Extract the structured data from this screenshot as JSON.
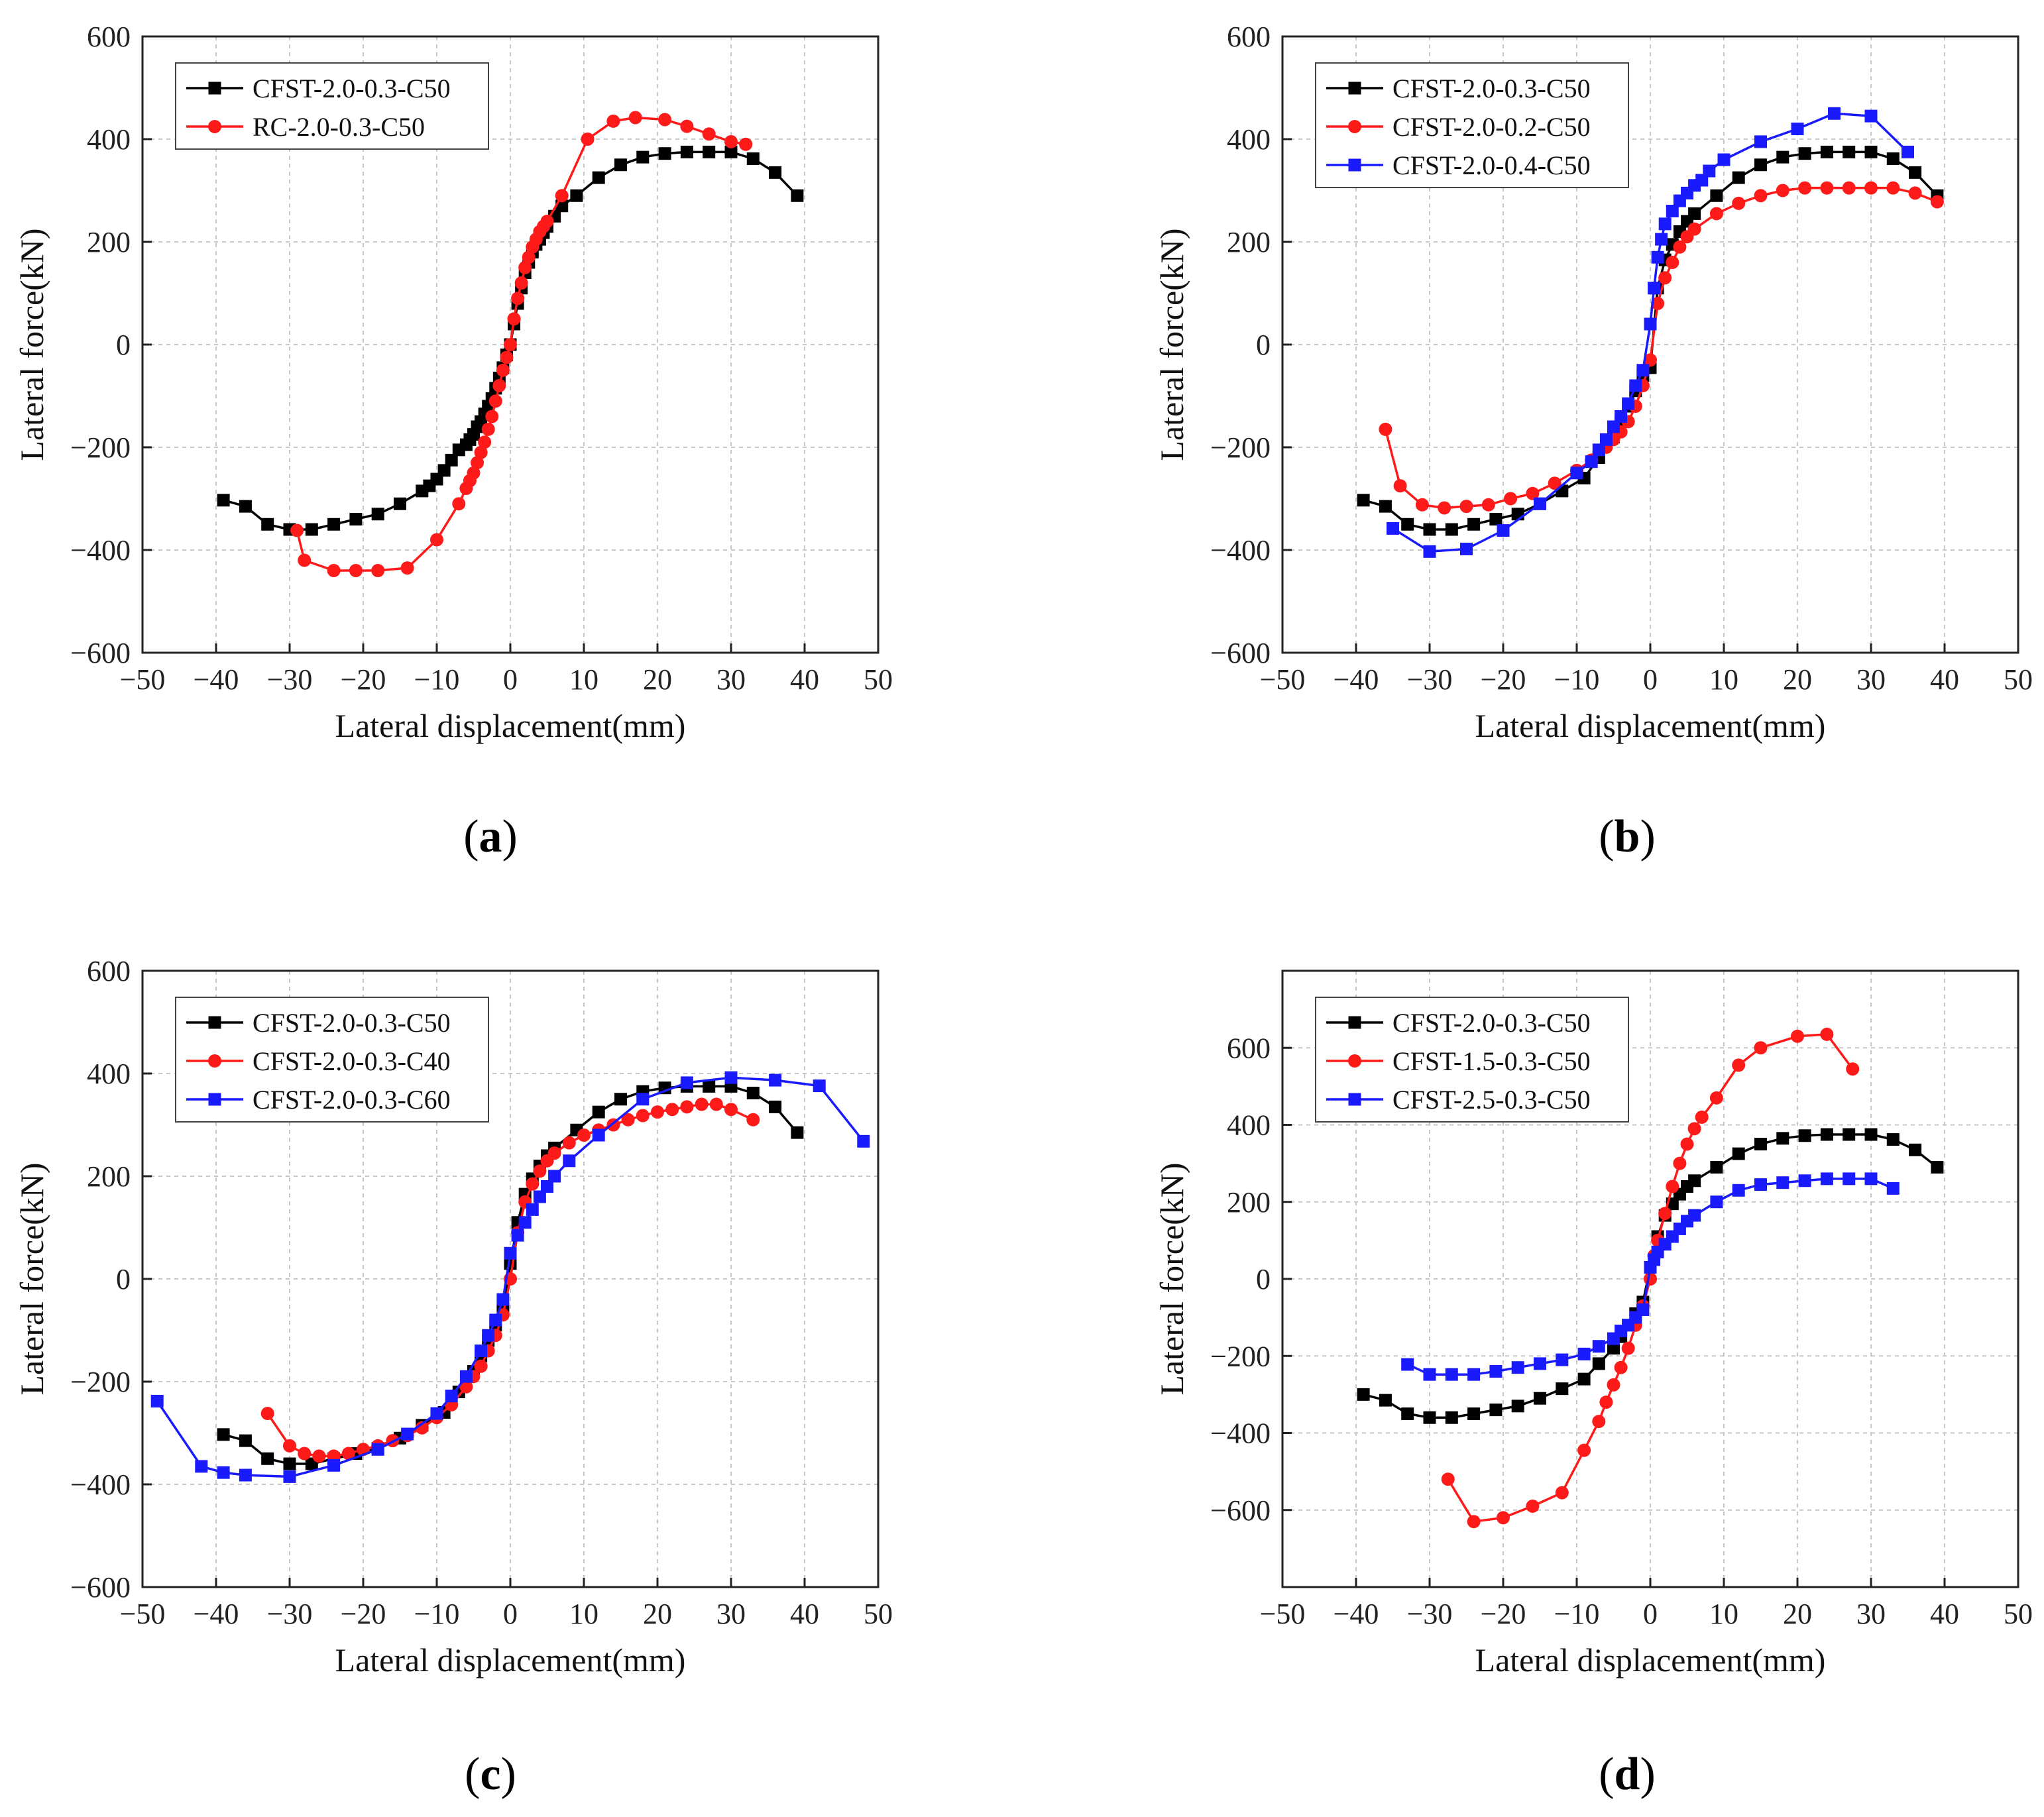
{
  "figure": {
    "panel_captions": [
      "a",
      "b",
      "c",
      "d"
    ]
  },
  "colors": {
    "black": "#000000",
    "red": "#ff1a1a",
    "blue": "#1a1aff",
    "grid": "#c8c8c8"
  },
  "chart_data": [
    {
      "id": "a",
      "type": "line",
      "xlabel": "Lateral displacement(mm)",
      "ylabel": "Lateral force(kN)",
      "xlim": [
        -50,
        50
      ],
      "ylim": [
        -600,
        600
      ],
      "xticks": [
        -50,
        -40,
        -30,
        -20,
        -10,
        0,
        10,
        20,
        30,
        40,
        50
      ],
      "yticks": [
        -600,
        -400,
        -200,
        0,
        200,
        400,
        600
      ],
      "grid": true,
      "legend_position": "top-left",
      "series": [
        {
          "name": "CFST-2.0-0.3-C50",
          "color": "black",
          "marker": "square",
          "x": [
            -39,
            -36,
            -33,
            -30,
            -27,
            -24,
            -21,
            -18,
            -15,
            -12,
            -11,
            -10,
            -9,
            -8,
            -7,
            -6,
            -5.5,
            -5,
            -4.5,
            -4,
            -3.5,
            -3,
            -2.5,
            -2,
            -1.5,
            -1,
            -0.5,
            0,
            0.5,
            1,
            1.5,
            2,
            2.5,
            3,
            3.5,
            4,
            4.5,
            5,
            6,
            7,
            9,
            12,
            15,
            18,
            21,
            24,
            27,
            30,
            33,
            36,
            39
          ],
          "y": [
            -303,
            -315,
            -350,
            -360,
            -360,
            -350,
            -340,
            -330,
            -310,
            -285,
            -275,
            -262,
            -245,
            -225,
            -205,
            -195,
            -185,
            -175,
            -160,
            -150,
            -135,
            -120,
            -105,
            -85,
            -65,
            -45,
            -20,
            0,
            40,
            80,
            110,
            140,
            160,
            180,
            195,
            205,
            218,
            230,
            250,
            270,
            290,
            325,
            350,
            365,
            372,
            375,
            375,
            375,
            362,
            335,
            290
          ]
        },
        {
          "name": "RC-2.0-0.3-C50",
          "color": "red",
          "marker": "circle",
          "x": [
            -29,
            -28,
            -24,
            -21,
            -18,
            -14,
            -10,
            -7,
            -6,
            -5.5,
            -5,
            -4.5,
            -4,
            -3.5,
            -3,
            -2.5,
            -2,
            -1.5,
            -1,
            -0.5,
            0,
            0.5,
            1,
            1.5,
            2,
            2.5,
            3,
            3.5,
            4,
            4.5,
            5,
            7,
            10.5,
            14,
            17,
            21,
            24,
            27,
            30,
            32
          ],
          "y": [
            -362,
            -420,
            -440,
            -440,
            -440,
            -435,
            -380,
            -310,
            -280,
            -265,
            -250,
            -230,
            -210,
            -190,
            -165,
            -140,
            -110,
            -80,
            -50,
            -25,
            0,
            50,
            90,
            120,
            150,
            170,
            190,
            205,
            220,
            230,
            240,
            290,
            400,
            435,
            442,
            438,
            425,
            410,
            395,
            390
          ]
        }
      ]
    },
    {
      "id": "b",
      "type": "line",
      "xlabel": "Lateral displacement(mm)",
      "ylabel": "Lateral force(kN)",
      "xlim": [
        -50,
        50
      ],
      "ylim": [
        -600,
        600
      ],
      "xticks": [
        -50,
        -40,
        -30,
        -20,
        -10,
        0,
        10,
        20,
        30,
        40,
        50
      ],
      "yticks": [
        -600,
        -400,
        -200,
        0,
        200,
        400,
        600
      ],
      "grid": true,
      "legend_position": "top-left",
      "series": [
        {
          "name": "CFST-2.0-0.3-C50",
          "color": "black",
          "marker": "square",
          "x": [
            -39,
            -36,
            -33,
            -30,
            -27,
            -24,
            -21,
            -18,
            -15,
            -12,
            -9,
            -7,
            -5,
            -4,
            -3,
            -2,
            -1,
            0,
            1,
            2,
            3,
            4,
            5,
            6,
            9,
            12,
            15,
            18,
            21,
            24,
            27,
            30,
            33,
            36,
            39
          ],
          "y": [
            -303,
            -315,
            -350,
            -360,
            -360,
            -350,
            -340,
            -330,
            -310,
            -285,
            -260,
            -220,
            -180,
            -150,
            -120,
            -90,
            -60,
            -45,
            110,
            165,
            195,
            220,
            240,
            255,
            290,
            325,
            350,
            365,
            372,
            375,
            375,
            375,
            362,
            335,
            290
          ]
        },
        {
          "name": "CFST-2.0-0.2-C50",
          "color": "red",
          "marker": "circle",
          "x": [
            -36,
            -34,
            -31,
            -28,
            -25,
            -22,
            -19,
            -16,
            -13,
            -10,
            -8,
            -6,
            -5,
            -4,
            -3,
            -2,
            -1,
            0,
            1,
            2,
            3,
            4,
            5,
            6,
            9,
            12,
            15,
            18,
            21,
            24,
            27,
            30,
            33,
            36,
            39
          ],
          "y": [
            -165,
            -275,
            -312,
            -318,
            -315,
            -312,
            -300,
            -290,
            -270,
            -245,
            -225,
            -200,
            -185,
            -170,
            -150,
            -120,
            -80,
            -30,
            80,
            130,
            160,
            190,
            210,
            225,
            255,
            275,
            290,
            300,
            305,
            305,
            305,
            305,
            305,
            295,
            278
          ]
        },
        {
          "name": "CFST-2.0-0.4-C50",
          "color": "blue",
          "marker": "square",
          "x": [
            -35,
            -30,
            -25,
            -20,
            -15,
            -10,
            -8,
            -7,
            -6,
            -5,
            -4,
            -3,
            -2,
            -1,
            0,
            0.5,
            1,
            1.5,
            2,
            3,
            4,
            5,
            6,
            7,
            8,
            10,
            15,
            20,
            25,
            30,
            35
          ],
          "y": [
            -358,
            -403,
            -398,
            -362,
            -310,
            -250,
            -228,
            -205,
            -185,
            -160,
            -140,
            -115,
            -80,
            -50,
            40,
            110,
            170,
            205,
            235,
            260,
            280,
            295,
            310,
            320,
            338,
            360,
            395,
            420,
            450,
            445,
            375
          ]
        }
      ]
    },
    {
      "id": "c",
      "type": "line",
      "xlabel": "Lateral displacement(mm)",
      "ylabel": "Lateral force(kN)",
      "xlim": [
        -50,
        50
      ],
      "ylim": [
        -600,
        600
      ],
      "xticks": [
        -50,
        -40,
        -30,
        -20,
        -10,
        0,
        10,
        20,
        30,
        40,
        50
      ],
      "yticks": [
        -600,
        -400,
        -200,
        0,
        200,
        400,
        600
      ],
      "grid": true,
      "legend_position": "top-left",
      "series": [
        {
          "name": "CFST-2.0-0.3-C50",
          "color": "black",
          "marker": "square",
          "x": [
            -39,
            -36,
            -33,
            -30,
            -27,
            -24,
            -21,
            -18,
            -15,
            -12,
            -9,
            -7,
            -5,
            -4,
            -3,
            -2,
            -1,
            0,
            1,
            2,
            3,
            4,
            5,
            6,
            9,
            12,
            15,
            18,
            21,
            24,
            27,
            30,
            33,
            36,
            39
          ],
          "y": [
            -303,
            -315,
            -350,
            -360,
            -360,
            -350,
            -340,
            -330,
            -310,
            -285,
            -260,
            -220,
            -180,
            -150,
            -120,
            -90,
            -60,
            30,
            110,
            165,
            195,
            220,
            240,
            255,
            290,
            325,
            350,
            365,
            372,
            375,
            375,
            375,
            362,
            335,
            285
          ]
        },
        {
          "name": "CFST-2.0-0.3-C40",
          "color": "red",
          "marker": "circle",
          "x": [
            -33,
            -30,
            -28,
            -26,
            -24,
            -22,
            -20,
            -18,
            -16,
            -14,
            -12,
            -10,
            -8,
            -6,
            -5,
            -4,
            -3,
            -2,
            -1,
            0,
            1,
            2,
            3,
            4,
            5,
            6,
            8,
            10,
            12,
            14,
            16,
            18,
            20,
            22,
            24,
            26,
            28,
            30,
            33
          ],
          "y": [
            -262,
            -325,
            -340,
            -345,
            -345,
            -340,
            -332,
            -325,
            -315,
            -305,
            -290,
            -270,
            -245,
            -210,
            -190,
            -170,
            -140,
            -110,
            -70,
            0,
            90,
            150,
            185,
            210,
            230,
            245,
            265,
            280,
            290,
            300,
            310,
            318,
            325,
            330,
            335,
            340,
            340,
            330,
            310
          ]
        },
        {
          "name": "CFST-2.0-0.3-C60",
          "color": "blue",
          "marker": "square",
          "x": [
            -48,
            -42,
            -39,
            -36,
            -30,
            -24,
            -18,
            -14,
            -10,
            -8,
            -6,
            -4,
            -3,
            -2,
            -1,
            0,
            1,
            2,
            3,
            4,
            5,
            6,
            8,
            12,
            18,
            24,
            30,
            36,
            42,
            48
          ],
          "y": [
            -238,
            -365,
            -377,
            -382,
            -385,
            -363,
            -332,
            -302,
            -262,
            -228,
            -190,
            -140,
            -110,
            -80,
            -40,
            50,
            85,
            110,
            135,
            160,
            180,
            200,
            230,
            280,
            350,
            382,
            392,
            387,
            376,
            268
          ]
        }
      ]
    },
    {
      "id": "d",
      "type": "line",
      "xlabel": "Lateral displacement(mm)",
      "ylabel": "Lateral force(kN)",
      "xlim": [
        -50,
        50
      ],
      "ylim": [
        -800,
        800
      ],
      "xticks": [
        -50,
        -40,
        -30,
        -20,
        -10,
        0,
        10,
        20,
        30,
        40,
        50
      ],
      "yticks": [
        -600,
        -400,
        -200,
        0,
        200,
        400,
        600
      ],
      "grid": true,
      "legend_position": "top-left",
      "series": [
        {
          "name": "CFST-2.0-0.3-C50",
          "color": "black",
          "marker": "square",
          "x": [
            -39,
            -36,
            -33,
            -30,
            -27,
            -24,
            -21,
            -18,
            -15,
            -12,
            -9,
            -7,
            -5,
            -4,
            -3,
            -2,
            -1,
            0,
            1,
            2,
            3,
            4,
            5,
            6,
            9,
            12,
            15,
            18,
            21,
            24,
            27,
            30,
            33,
            36,
            39
          ],
          "y": [
            -300,
            -315,
            -350,
            -360,
            -360,
            -350,
            -340,
            -330,
            -310,
            -285,
            -260,
            -220,
            -180,
            -150,
            -120,
            -90,
            -60,
            30,
            110,
            165,
            195,
            220,
            240,
            255,
            290,
            325,
            350,
            365,
            372,
            375,
            375,
            375,
            362,
            335,
            290
          ]
        },
        {
          "name": "CFST-1.5-0.3-C50",
          "color": "red",
          "marker": "circle",
          "x": [
            -27.5,
            -24,
            -20,
            -16,
            -12,
            -9,
            -7,
            -6,
            -5,
            -4,
            -3,
            -2,
            -1,
            0,
            0.5,
            1,
            2,
            3,
            4,
            5,
            6,
            7,
            9,
            12,
            15,
            20,
            24,
            27.5
          ],
          "y": [
            -520,
            -630,
            -620,
            -590,
            -555,
            -445,
            -370,
            -320,
            -275,
            -230,
            -180,
            -120,
            -70,
            0,
            60,
            100,
            170,
            240,
            300,
            350,
            390,
            420,
            470,
            555,
            600,
            630,
            635,
            545
          ]
        },
        {
          "name": "CFST-2.5-0.3-C50",
          "color": "blue",
          "marker": "square",
          "x": [
            -33,
            -30,
            -27,
            -24,
            -21,
            -18,
            -15,
            -12,
            -9,
            -7,
            -5,
            -4,
            -3,
            -2,
            -1,
            0,
            0.5,
            1,
            2,
            3,
            4,
            5,
            6,
            9,
            12,
            15,
            18,
            21,
            24,
            27,
            30,
            33
          ],
          "y": [
            -222,
            -248,
            -248,
            -248,
            -240,
            -230,
            -220,
            -210,
            -195,
            -175,
            -155,
            -135,
            -120,
            -100,
            -80,
            30,
            50,
            70,
            90,
            110,
            130,
            150,
            165,
            200,
            230,
            245,
            250,
            255,
            260,
            260,
            260,
            235
          ]
        }
      ]
    }
  ]
}
